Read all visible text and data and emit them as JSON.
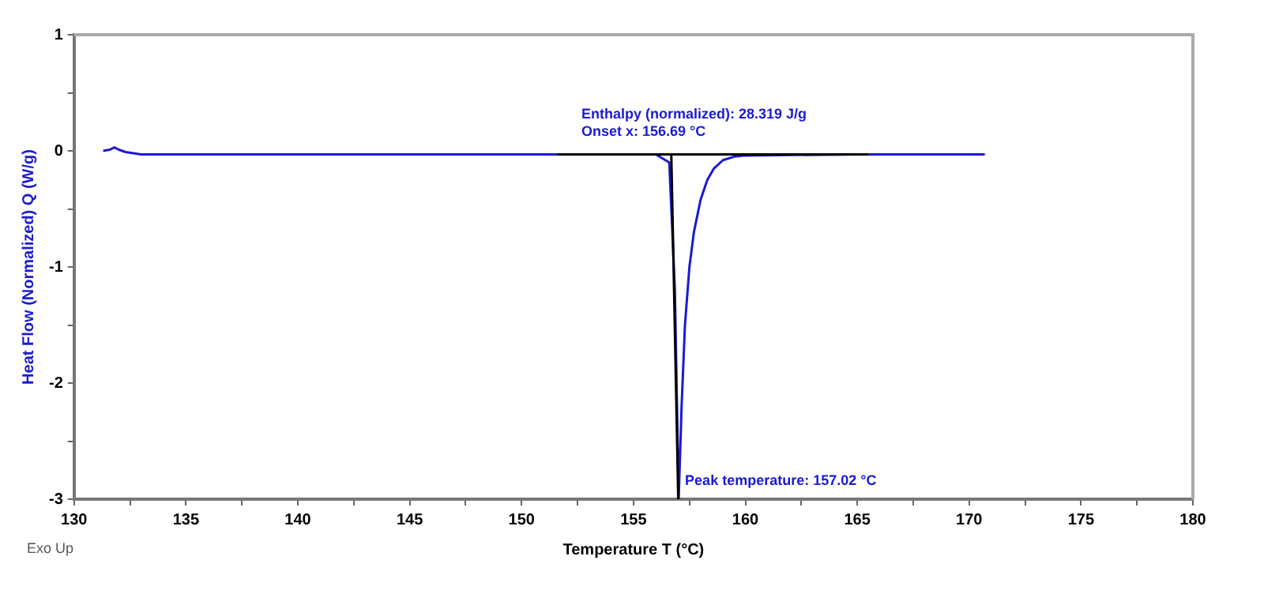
{
  "chart_data": {
    "type": "line",
    "xlabel": "Temperature T (°C)",
    "ylabel": "Heat Flow (Normalized) Q (W/g)",
    "series": [
      {
        "color": "#1a1ad0",
        "x": [
          131.3,
          131.6,
          131.8,
          132.0,
          132.3,
          133.0,
          140,
          150,
          156.0,
          156.6,
          156.85,
          157.02,
          157.15,
          157.3,
          157.5,
          157.7,
          158.0,
          158.3,
          158.6,
          159.0,
          159.5,
          160.0,
          165,
          170.7
        ],
        "values": [
          0.0,
          0.01,
          0.03,
          0.01,
          -0.01,
          -0.03,
          -0.03,
          -0.03,
          -0.03,
          -0.1,
          -1.2,
          -3.0,
          -2.2,
          -1.5,
          -1.0,
          -0.7,
          -0.42,
          -0.25,
          -0.15,
          -0.08,
          -0.05,
          -0.04,
          -0.03,
          -0.03
        ]
      },
      {
        "color": "#000000",
        "x": [
          151.6,
          165.5
        ],
        "values": [
          -0.03,
          -0.03
        ]
      },
      {
        "color": "#000000",
        "x": [
          156.69,
          157.0
        ],
        "values": [
          -0.03,
          -3.0
        ]
      }
    ],
    "xlim": [
      130,
      180
    ],
    "xticks": [
      130,
      135,
      140,
      145,
      150,
      155,
      160,
      165,
      170,
      175,
      180
    ],
    "ylim": [
      -3,
      1
    ],
    "yticks": [
      -3,
      -2,
      -1,
      0,
      1
    ],
    "grid": false,
    "legend": false,
    "marker": "none",
    "line_style": "solid",
    "annotations": [
      "Enthalpy (normalized): 28.319 J/g",
      "Onset x: 156.69 °C",
      {
        "text": "Peak temperature: 157.02 °C",
        "x": 157.02,
        "y": -3.0
      },
      "Exo Up"
    ]
  }
}
